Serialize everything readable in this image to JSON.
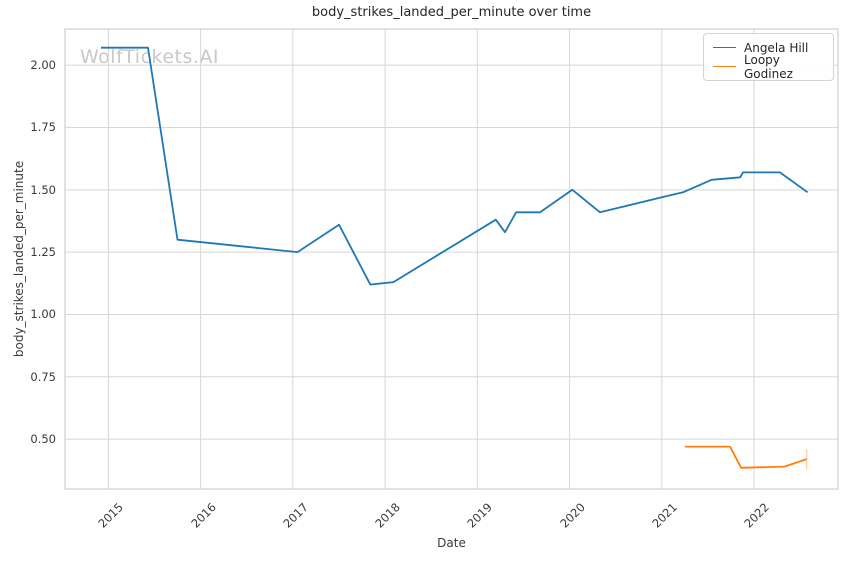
{
  "chart_data": {
    "type": "line",
    "title": "body_strikes_landed_per_minute over time",
    "xlabel": "Date",
    "ylabel": "body_strikes_landed_per_minute",
    "watermark": "WolfTickets.AI",
    "xlim": [
      2014.53,
      2022.91
    ],
    "ylim": [
      0.3,
      2.145
    ],
    "xticks": [
      2015,
      2016,
      2017,
      2018,
      2019,
      2020,
      2021,
      2022
    ],
    "xtick_labels": [
      "2015",
      "2016",
      "2017",
      "2018",
      "2019",
      "2020",
      "2021",
      "2022"
    ],
    "yticks": [
      0.5,
      0.75,
      1.0,
      1.25,
      1.5,
      1.75,
      2.0
    ],
    "ytick_labels": [
      "0.50",
      "0.75",
      "1.00",
      "1.25",
      "1.50",
      "1.75",
      "2.00"
    ],
    "grid": true,
    "legend_position": "upper right",
    "series": [
      {
        "name": "Angela Hill",
        "color": "#1f77b4",
        "points": [
          [
            2014.92,
            2.07
          ],
          [
            2015.43,
            2.07
          ],
          [
            2015.75,
            1.3
          ],
          [
            2017.05,
            1.25
          ],
          [
            2017.5,
            1.36
          ],
          [
            2017.84,
            1.12
          ],
          [
            2018.09,
            1.13
          ],
          [
            2019.2,
            1.38
          ],
          [
            2019.3,
            1.33
          ],
          [
            2019.42,
            1.41
          ],
          [
            2019.68,
            1.41
          ],
          [
            2020.03,
            1.5
          ],
          [
            2020.33,
            1.41
          ],
          [
            2021.0,
            1.47
          ],
          [
            2021.23,
            1.49
          ],
          [
            2021.54,
            1.54
          ],
          [
            2021.85,
            1.55
          ],
          [
            2021.88,
            1.57
          ],
          [
            2022.28,
            1.57
          ],
          [
            2022.58,
            1.49
          ]
        ]
      },
      {
        "name": "Loopy Godinez",
        "color": "#ff7f0e",
        "end_tick": true,
        "points": [
          [
            2021.25,
            0.47
          ],
          [
            2021.74,
            0.47
          ],
          [
            2021.86,
            0.385
          ],
          [
            2022.33,
            0.39
          ],
          [
            2022.57,
            0.42
          ]
        ]
      }
    ]
  },
  "colors": {
    "grid": "#d7d7d7",
    "axis_border": "#cfcfcf",
    "tick_text": "#3a3a3a",
    "title_text": "#262626",
    "watermark": "#c8c8c8",
    "series_blue": "#1f77b4",
    "series_orange": "#ff7f0e"
  }
}
